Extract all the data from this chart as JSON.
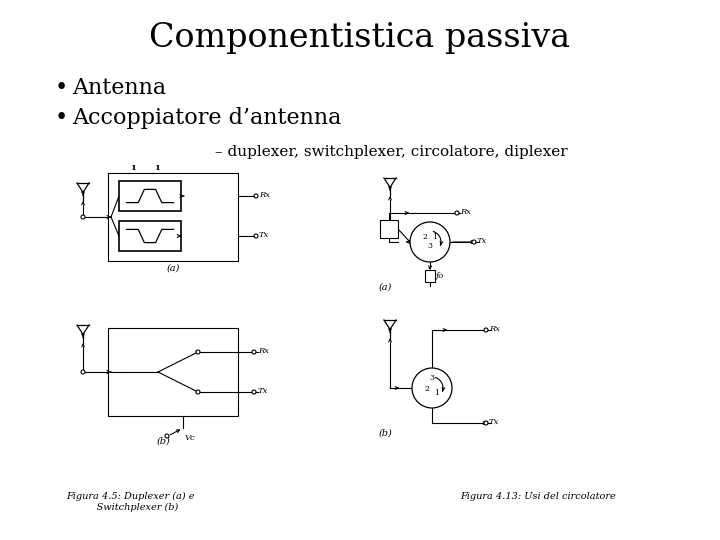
{
  "title": "Componentistica passiva",
  "bullet1": "Antenna",
  "bullet2": "Accoppiatore d’antenna",
  "subtitle_text": "– duplexer, switchplexer, circolatore, diplexer",
  "caption_left": "Figura 4.5: Duplexer (a) e\n     Switchplexer (b)",
  "caption_right": "Figura 4.13: Usi del circolatore",
  "bg_color": "#ffffff",
  "title_color": "#000000",
  "text_color": "#000000",
  "diagram_color": "#000000"
}
